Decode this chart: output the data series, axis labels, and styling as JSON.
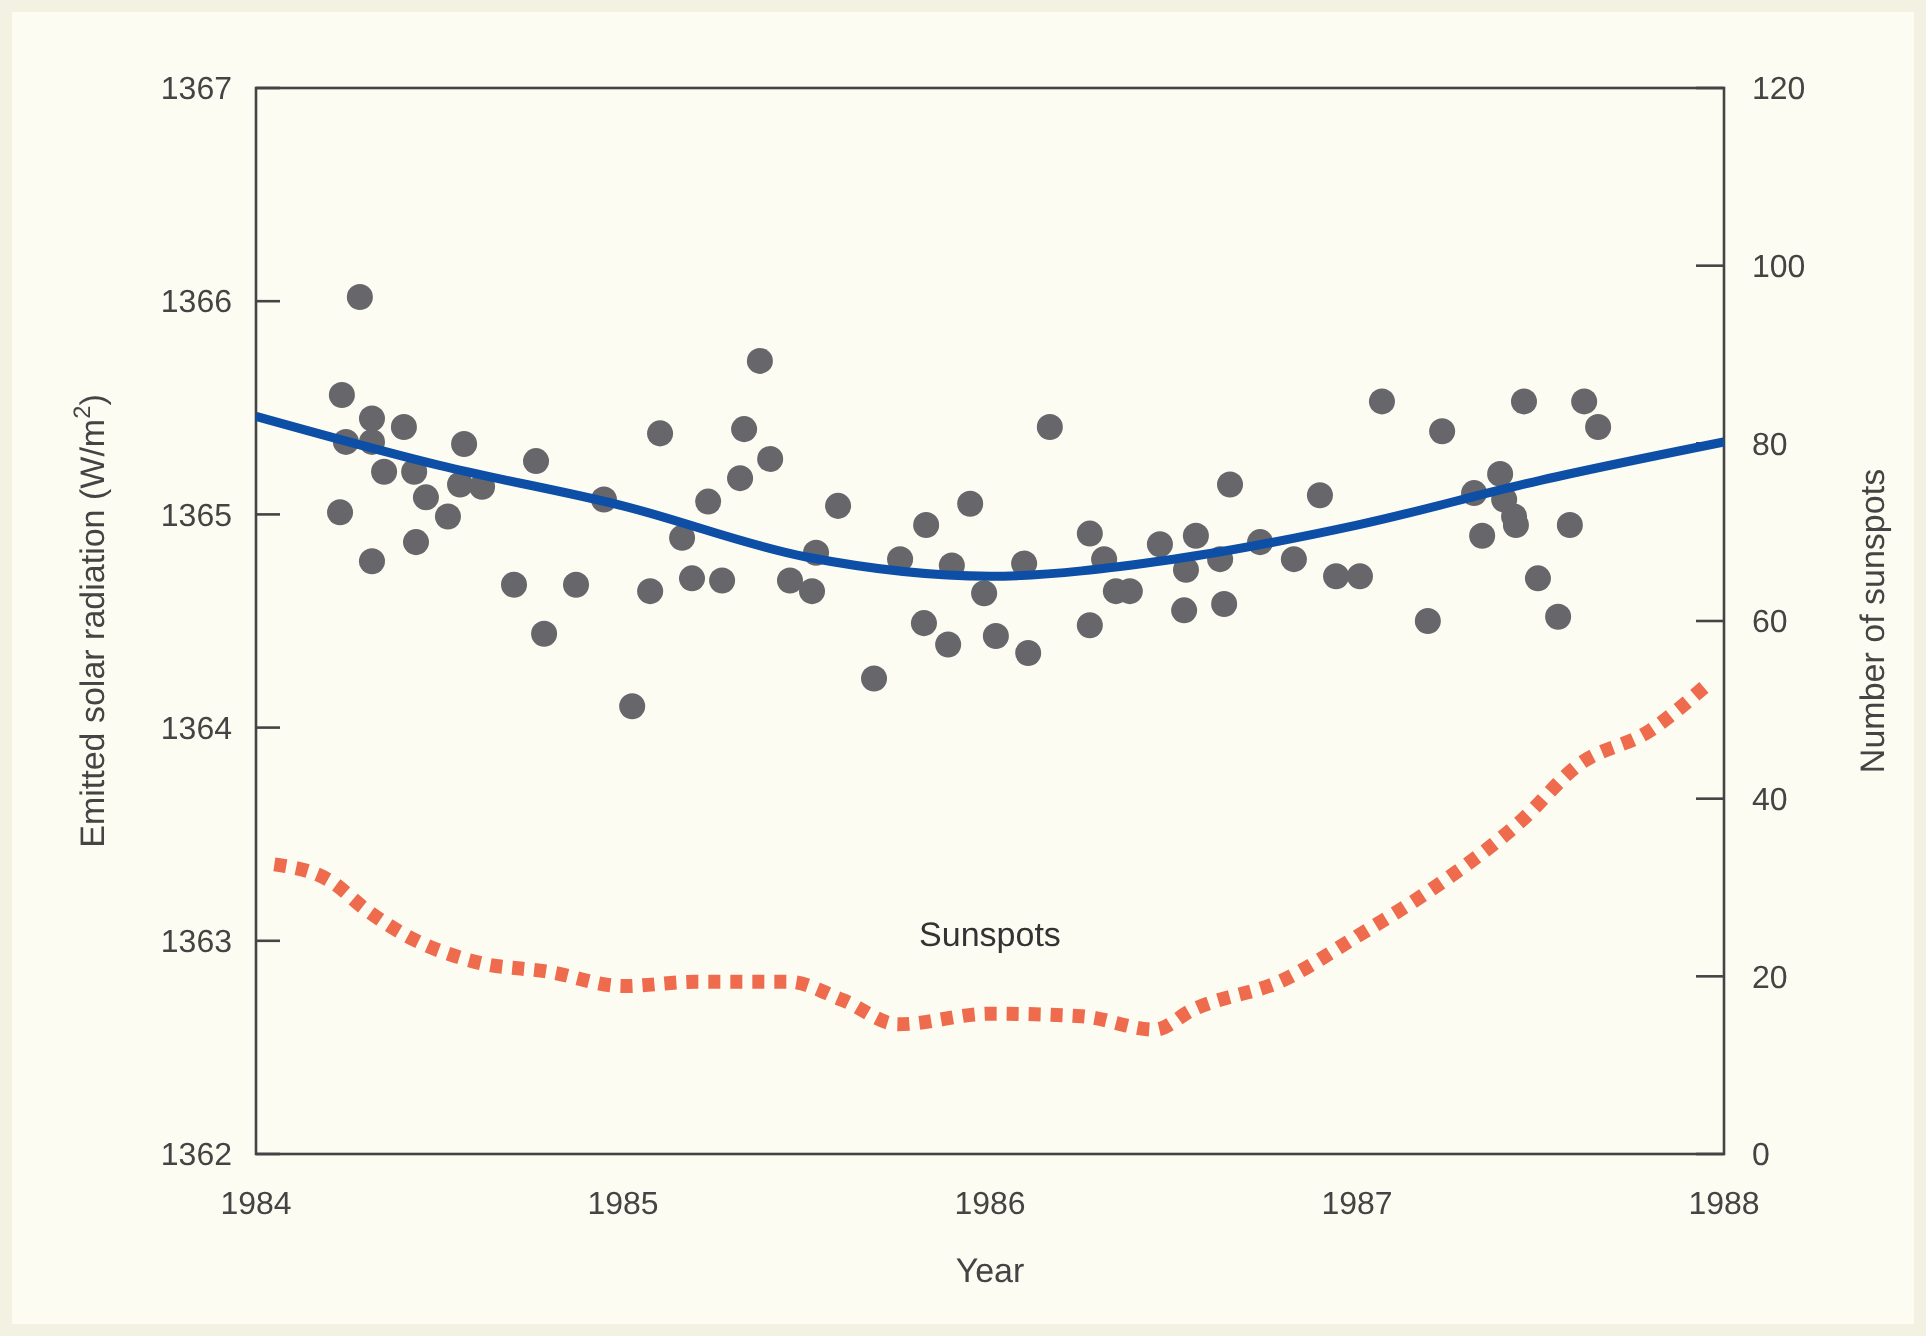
{
  "chart_data": {
    "type": "scatter",
    "xlabel": "Year",
    "ylabel": "Emitted solar radiation (W/m$^{2}$)",
    "y2label": "Number of sunspots",
    "xlim": [
      1984,
      1988
    ],
    "xticks": [
      1984,
      1985,
      1986,
      1987,
      1988
    ],
    "ylim": [
      1362,
      1367
    ],
    "yticks": [
      1362,
      1363,
      1364,
      1365,
      1366,
      1367
    ],
    "y2lim": [
      0,
      120
    ],
    "y2ticks": [
      0,
      20,
      40,
      60,
      80,
      100,
      120
    ],
    "grid": false,
    "series": [
      {
        "color": "#67676b",
        "marker": "circle",
        "x": [
          1984.229,
          1984.234,
          1984.245,
          1984.283,
          1984.316,
          1984.316,
          1984.316,
          1984.349,
          1984.403,
          1984.431,
          1984.436,
          1984.463,
          1984.523,
          1984.556,
          1984.567,
          1984.616,
          1984.703,
          1984.763,
          1984.785,
          1984.872,
          1984.948,
          1985.025,
          1985.074,
          1985.101,
          1985.161,
          1985.188,
          1985.232,
          1985.27,
          1985.319,
          1985.33,
          1985.373,
          1985.401,
          1985.455,
          1985.515,
          1985.526,
          1985.586,
          1985.684,
          1985.755,
          1985.82,
          1985.826,
          1985.886,
          1985.896,
          1985.946,
          1985.984,
          1986.016,
          1986.093,
          1986.104,
          1986.163,
          1986.272,
          1986.272,
          1986.311,
          1986.343,
          1986.381,
          1986.463,
          1986.529,
          1986.534,
          1986.561,
          1986.627,
          1986.638,
          1986.654,
          1986.736,
          1986.828,
          1986.899,
          1986.943,
          1987.008,
          1987.068,
          1987.193,
          1987.232,
          1987.319,
          1987.341,
          1987.39,
          1987.401,
          1987.428,
          1987.433,
          1987.455,
          1987.493,
          1987.548,
          1987.58,
          1987.619,
          1987.657
        ],
        "values": [
          1365.01,
          1365.56,
          1365.34,
          1366.02,
          1365.45,
          1365.34,
          1364.78,
          1365.2,
          1365.41,
          1365.2,
          1364.87,
          1365.08,
          1364.99,
          1365.14,
          1365.33,
          1365.13,
          1364.67,
          1365.25,
          1364.44,
          1364.67,
          1365.07,
          1364.1,
          1364.64,
          1365.38,
          1364.89,
          1364.7,
          1365.06,
          1364.69,
          1365.17,
          1365.4,
          1365.72,
          1365.26,
          1364.69,
          1364.64,
          1364.82,
          1365.04,
          1364.23,
          1364.79,
          1364.49,
          1364.95,
          1364.39,
          1364.76,
          1365.05,
          1364.63,
          1364.43,
          1364.77,
          1364.35,
          1365.41,
          1364.48,
          1364.91,
          1364.79,
          1364.64,
          1364.64,
          1364.86,
          1364.55,
          1364.74,
          1364.9,
          1364.79,
          1364.58,
          1365.14,
          1364.87,
          1364.79,
          1365.09,
          1364.71,
          1364.71,
          1365.53,
          1364.5,
          1365.39,
          1365.1,
          1364.9,
          1365.19,
          1365.07,
          1364.99,
          1364.95,
          1365.53,
          1364.7,
          1364.52,
          1364.95,
          1365.53,
          1365.41
        ]
      },
      {
        "type": "line",
        "color": "#0d4ea6",
        "line_style": "solid",
        "x": [
          1984,
          1984.5,
          1985,
          1985.5,
          1986,
          1986.5,
          1987,
          1987.5,
          1988
        ],
        "values": [
          1365.46,
          1365.23,
          1365.04,
          1364.8,
          1364.71,
          1364.79,
          1364.95,
          1365.16,
          1365.34
        ]
      },
      {
        "type": "line",
        "name": "Sunspots",
        "axis": "y2",
        "color": "#ee6b4d",
        "line_style": "dashed",
        "x": [
          1984.05,
          1984.2,
          1984.3,
          1984.4,
          1984.6,
          1984.8,
          1985,
          1985.2,
          1985.45,
          1985.6,
          1985.75,
          1986,
          1986.25,
          1986.45,
          1986.55,
          1986.8,
          1987,
          1987.2,
          1987.45,
          1987.6,
          1987.8,
          1987.95
        ],
        "values": [
          32.6,
          30.8,
          27.5,
          24.8,
          21.6,
          20.5,
          18.9,
          19.4,
          19.4,
          17.3,
          14.6,
          15.8,
          15.5,
          14,
          16.2,
          19.6,
          24.5,
          29.7,
          37.6,
          43.7,
          47.7,
          52.7
        ]
      }
    ]
  }
}
